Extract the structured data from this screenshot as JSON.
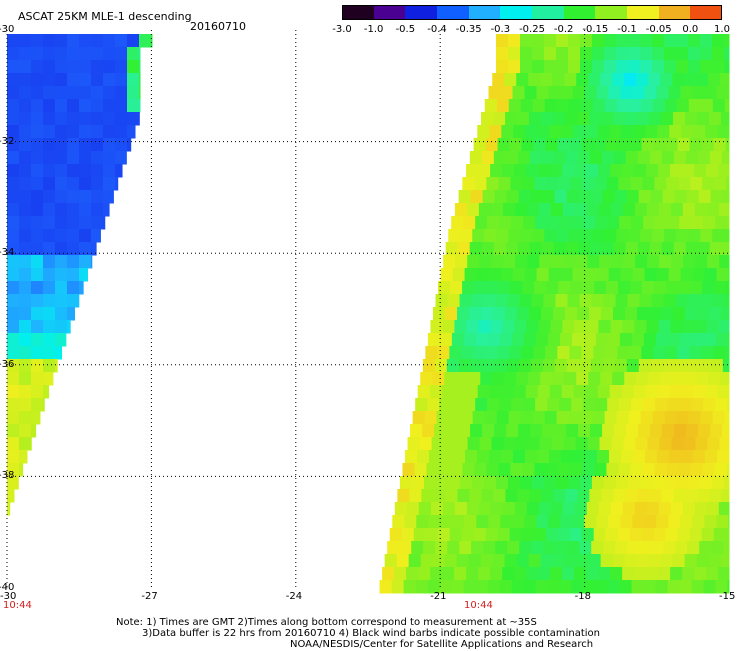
{
  "header": {
    "title": "ASCAT 25KM MLE-1 descending",
    "date": "20160710"
  },
  "colorbar": {
    "tick_labels": [
      "-3.0",
      "-1.0",
      "-0.5",
      "-0.4",
      "-0.35",
      "-0.3",
      "-0.25",
      "-0.2",
      "-0.15",
      "-0.1",
      "-0.05",
      "0.0",
      "1.0"
    ],
    "colors": [
      "#200020",
      "#4a0090",
      "#1020e0",
      "#1060ff",
      "#20b0ff",
      "#00f0f0",
      "#20f0a0",
      "#30f030",
      "#90f020",
      "#f0f020",
      "#f0b020",
      "#f05010"
    ]
  },
  "axes": {
    "x_ticks": [
      "-30",
      "-27",
      "-24",
      "-21",
      "-18",
      "-15"
    ],
    "y_ticks": [
      "-30",
      "-32",
      "-34",
      "-36",
      "-38",
      "-40"
    ],
    "lon_range": [
      -30,
      -15
    ],
    "lat_range": [
      -40,
      -30
    ]
  },
  "time_labels": [
    "10:44",
    "10:44"
  ],
  "footer": {
    "line1": "Note: 1) Times are GMT 2)Times along bottom correspond to measurement at ~35S",
    "line2": "3)Data buffer is 22 hrs from 20160710 4) Black wind barbs indicate possible contamination",
    "line3": "NOAA/NESDIS/Center for Satellite Applications and Research"
  }
}
